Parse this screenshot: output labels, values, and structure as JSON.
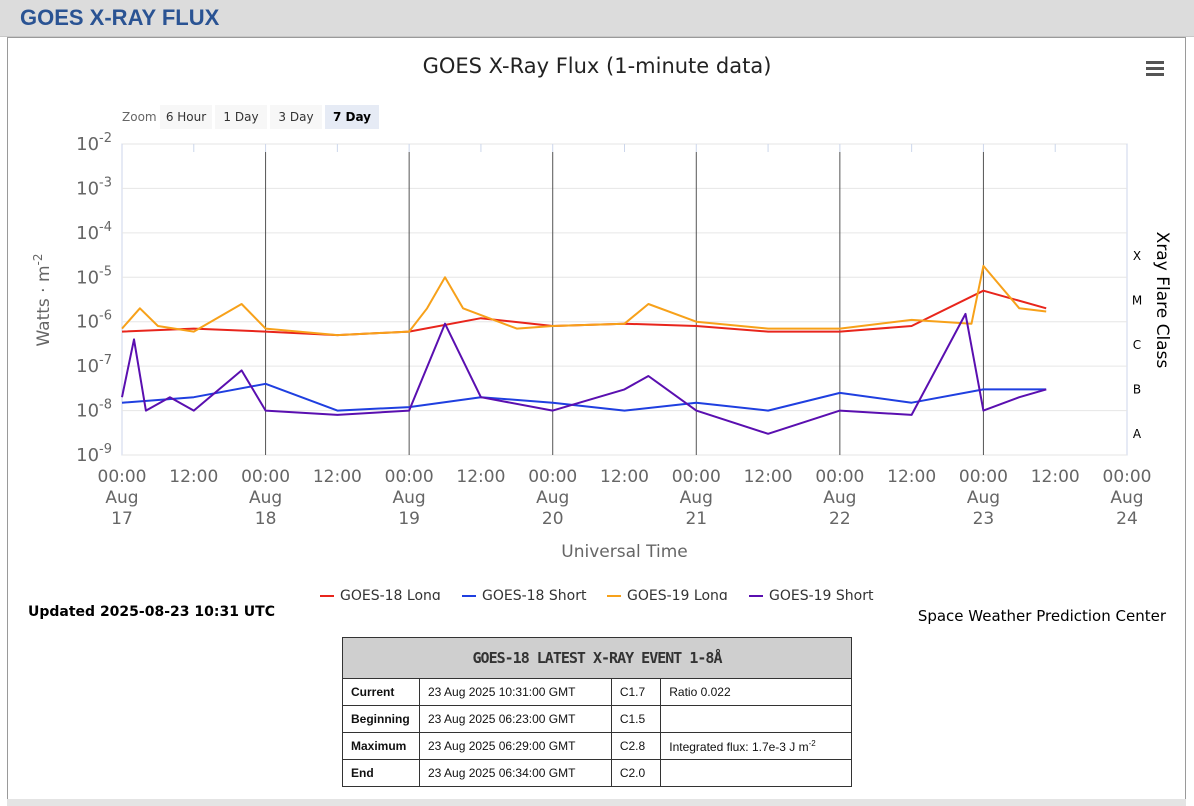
{
  "page": {
    "header_title": "GOES X-RAY FLUX"
  },
  "chart_data": {
    "type": "line",
    "title": "GOES X-Ray Flux (1-minute data)",
    "xlabel": "Universal Time",
    "ylabel": "Watts · m",
    "ylabel_sup": "-2",
    "right_label": "Xray Flare Class",
    "y_scale": "log",
    "ylim": [
      1e-09,
      0.01
    ],
    "y_ticks": [
      {
        "base": "10",
        "exp": "-2"
      },
      {
        "base": "10",
        "exp": "-3"
      },
      {
        "base": "10",
        "exp": "-4"
      },
      {
        "base": "10",
        "exp": "-5"
      },
      {
        "base": "10",
        "exp": "-6"
      },
      {
        "base": "10",
        "exp": "-7"
      },
      {
        "base": "10",
        "exp": "-8"
      },
      {
        "base": "10",
        "exp": "-9"
      }
    ],
    "flare_classes": [
      "X",
      "M",
      "C",
      "B",
      "A"
    ],
    "x_ticks": [
      {
        "time": "00:00",
        "month": "Aug",
        "day": "17"
      },
      {
        "time": "12:00"
      },
      {
        "time": "00:00",
        "month": "Aug",
        "day": "18"
      },
      {
        "time": "12:00"
      },
      {
        "time": "00:00",
        "month": "Aug",
        "day": "19"
      },
      {
        "time": "12:00"
      },
      {
        "time": "00:00",
        "month": "Aug",
        "day": "20"
      },
      {
        "time": "12:00"
      },
      {
        "time": "00:00",
        "month": "Aug",
        "day": "21"
      },
      {
        "time": "12:00"
      },
      {
        "time": "00:00",
        "month": "Aug",
        "day": "22"
      },
      {
        "time": "12:00"
      },
      {
        "time": "00:00",
        "month": "Aug",
        "day": "23"
      },
      {
        "time": "12:00"
      },
      {
        "time": "00:00",
        "month": "Aug",
        "day": "24"
      }
    ],
    "x_range": [
      "2025-08-17 00:00",
      "2025-08-24 00:00"
    ],
    "day_separators": [
      "Aug 18",
      "Aug 19",
      "Aug 20",
      "Aug 21",
      "Aug 22",
      "Aug 23"
    ],
    "grid": true,
    "legend_position": "bottom-center",
    "series": [
      {
        "name": "GOES-18 Long",
        "color": "#e8251c",
        "x": [
          "2025-08-17 00:00",
          "2025-08-17 12:00",
          "2025-08-18 00:00",
          "2025-08-18 12:00",
          "2025-08-19 00:00",
          "2025-08-19 12:00",
          "2025-08-20 00:00",
          "2025-08-20 12:00",
          "2025-08-21 00:00",
          "2025-08-21 12:00",
          "2025-08-22 00:00",
          "2025-08-22 12:00",
          "2025-08-23 00:00",
          "2025-08-23 10:30"
        ],
        "y": [
          6e-07,
          7e-07,
          6e-07,
          5e-07,
          6e-07,
          1.2e-06,
          8e-07,
          9e-07,
          8e-07,
          6e-07,
          6e-07,
          8e-07,
          5e-06,
          2e-06
        ]
      },
      {
        "name": "GOES-18 Short",
        "color": "#1f3fe0",
        "x": [
          "2025-08-17 00:00",
          "2025-08-17 12:00",
          "2025-08-18 00:00",
          "2025-08-18 12:00",
          "2025-08-19 00:00",
          "2025-08-19 12:00",
          "2025-08-20 00:00",
          "2025-08-20 12:00",
          "2025-08-21 00:00",
          "2025-08-21 12:00",
          "2025-08-22 00:00",
          "2025-08-22 12:00",
          "2025-08-23 00:00",
          "2025-08-23 10:30"
        ],
        "y": [
          1.5e-08,
          2e-08,
          4e-08,
          1e-08,
          1.2e-08,
          2e-08,
          1.5e-08,
          1e-08,
          1.5e-08,
          1e-08,
          2.5e-08,
          1.5e-08,
          3e-08,
          3e-08
        ]
      },
      {
        "name": "GOES-19 Long",
        "color": "#f7a11a",
        "x": [
          "2025-08-17 00:00",
          "2025-08-17 03:00",
          "2025-08-17 06:00",
          "2025-08-17 12:00",
          "2025-08-17 20:00",
          "2025-08-18 00:00",
          "2025-08-18 12:00",
          "2025-08-19 00:00",
          "2025-08-19 03:00",
          "2025-08-19 06:00",
          "2025-08-19 09:00",
          "2025-08-19 18:00",
          "2025-08-20 00:00",
          "2025-08-20 12:00",
          "2025-08-20 16:00",
          "2025-08-21 00:00",
          "2025-08-21 12:00",
          "2025-08-22 00:00",
          "2025-08-22 12:00",
          "2025-08-22 22:00",
          "2025-08-23 00:00",
          "2025-08-23 06:00",
          "2025-08-23 10:30"
        ],
        "y": [
          7e-07,
          2e-06,
          8e-07,
          6e-07,
          2.5e-06,
          7e-07,
          5e-07,
          6e-07,
          2e-06,
          1e-05,
          2e-06,
          7e-07,
          8e-07,
          9e-07,
          2.5e-06,
          1e-06,
          7e-07,
          7e-07,
          1.1e-06,
          9e-07,
          1.8e-05,
          2e-06,
          1.7e-06
        ]
      },
      {
        "name": "GOES-19 Short",
        "color": "#5a0fb0",
        "x": [
          "2025-08-17 00:00",
          "2025-08-17 02:00",
          "2025-08-17 04:00",
          "2025-08-17 08:00",
          "2025-08-17 12:00",
          "2025-08-17 20:00",
          "2025-08-18 00:00",
          "2025-08-18 12:00",
          "2025-08-19 00:00",
          "2025-08-19 06:00",
          "2025-08-19 12:00",
          "2025-08-20 00:00",
          "2025-08-20 12:00",
          "2025-08-20 16:00",
          "2025-08-21 00:00",
          "2025-08-21 12:00",
          "2025-08-22 00:00",
          "2025-08-22 12:00",
          "2025-08-22 21:00",
          "2025-08-23 00:00",
          "2025-08-23 06:00",
          "2025-08-23 10:30"
        ],
        "y": [
          2e-08,
          4e-07,
          1e-08,
          2e-08,
          1e-08,
          8e-08,
          1e-08,
          8e-09,
          1e-08,
          9e-07,
          2e-08,
          1e-08,
          3e-08,
          6e-08,
          1e-08,
          3e-09,
          1e-08,
          8e-09,
          1.5e-06,
          1e-08,
          2e-08,
          3e-08
        ]
      }
    ]
  },
  "zoom": {
    "label": "Zoom",
    "buttons": [
      "6 Hour",
      "1 Day",
      "3 Day",
      "7 Day"
    ],
    "active": "7 Day"
  },
  "updated": "Updated 2025-08-23 10:31 UTC",
  "credit": "Space Weather Prediction Center",
  "event_table": {
    "title": "GOES-18 LATEST X-RAY EVENT 1-8Å",
    "rows": [
      {
        "label": "Current",
        "time": "23 Aug 2025 10:31:00 GMT",
        "class": "C1.7",
        "extra": "Ratio 0.022"
      },
      {
        "label": "Beginning",
        "time": "23 Aug 2025 06:23:00 GMT",
        "class": "C1.5",
        "extra": ""
      },
      {
        "label": "Maximum",
        "time": "23 Aug 2025 06:29:00 GMT",
        "class": "C2.8",
        "extra": "Integrated flux: 1.7e-3 J m",
        "extra_sup": "-2"
      },
      {
        "label": "End",
        "time": "23 Aug 2025 06:34:00 GMT",
        "class": "C2.0",
        "extra": ""
      }
    ]
  }
}
